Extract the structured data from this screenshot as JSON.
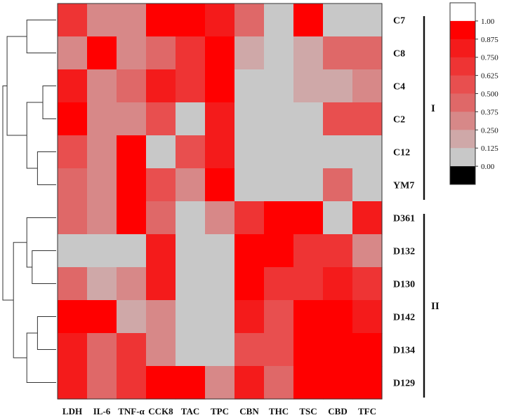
{
  "chart_data": {
    "type": "heatmap",
    "title": "",
    "xlabel": "",
    "ylabel": "",
    "columns": [
      "LDH",
      "IL-6",
      "TNF-α",
      "CCK8",
      "TAC",
      "TPC",
      "CBN",
      "THC",
      "TSC",
      "CBD",
      "TFC"
    ],
    "rows": [
      "C7",
      "C8",
      "C4",
      "C2",
      "C12",
      "YM7",
      "D361",
      "D132",
      "D130",
      "D142",
      "D134",
      "D129"
    ],
    "values": [
      [
        0.7,
        0.3,
        0.3,
        1.0,
        1.0,
        0.85,
        0.4,
        0.1,
        1.0,
        0.1,
        0.1
      ],
      [
        0.35,
        1.0,
        0.3,
        0.5,
        0.75,
        1.0,
        0.25,
        0.1,
        0.25,
        0.4,
        0.4
      ],
      [
        0.85,
        0.35,
        0.5,
        0.8,
        0.65,
        1.0,
        0.1,
        0.1,
        0.25,
        0.25,
        0.35
      ],
      [
        1.0,
        0.35,
        0.35,
        0.6,
        0.1,
        0.8,
        0.1,
        0.1,
        0.1,
        0.55,
        0.55
      ],
      [
        0.6,
        0.35,
        0.9,
        0.1,
        0.6,
        0.8,
        0.1,
        0.1,
        0.1,
        0.1,
        0.1
      ],
      [
        0.5,
        0.35,
        1.0,
        0.6,
        0.3,
        1.0,
        0.1,
        0.1,
        0.1,
        0.5,
        0.1
      ],
      [
        0.5,
        0.35,
        1.0,
        0.45,
        0.1,
        0.3,
        0.65,
        1.0,
        1.0,
        0.1,
        0.8
      ],
      [
        0.1,
        0.1,
        0.1,
        0.8,
        0.1,
        0.1,
        1.0,
        1.0,
        0.65,
        0.65,
        0.3
      ],
      [
        0.5,
        0.25,
        0.35,
        0.8,
        0.1,
        0.1,
        0.9,
        0.75,
        0.75,
        0.85,
        0.65
      ],
      [
        1.0,
        1.0,
        0.25,
        0.35,
        0.1,
        0.1,
        0.8,
        0.6,
        1.0,
        1.0,
        0.85
      ],
      [
        0.85,
        0.5,
        0.65,
        0.35,
        0.1,
        0.1,
        0.6,
        0.6,
        0.9,
        1.0,
        1.0
      ],
      [
        0.85,
        0.5,
        0.65,
        1.0,
        1.0,
        0.3,
        0.8,
        0.4,
        1.0,
        0.9,
        1.0
      ]
    ],
    "colorbar": {
      "ticks": [
        "1.00",
        "0.875",
        "0.750",
        "0.625",
        "0.500",
        "0.375",
        "0.250",
        "0.125",
        "0.00"
      ],
      "bands": [
        "#ffffff",
        "#ff0000",
        "#f41b1b",
        "#ee3434",
        "#e84f4f",
        "#df6868",
        "#d78888",
        "#cfa8a8",
        "#c8c8c8",
        "#000000"
      ]
    },
    "groups": [
      {
        "label": "I",
        "rows": [
          "C7",
          "C8",
          "C4",
          "C2",
          "C12",
          "YM7"
        ]
      },
      {
        "label": "II",
        "rows": [
          "D361",
          "D132",
          "D130",
          "D142",
          "D134",
          "D129"
        ]
      }
    ],
    "dendrogram": {
      "linkage": [
        {
          "a": "C7",
          "b": "C8",
          "height": 0.55
        },
        {
          "a": "C4",
          "b": "C2",
          "height": 0.25
        },
        {
          "a": "C12",
          "b": "YM7",
          "height": 0.35
        },
        {
          "a": "C4+C2",
          "b": "C12+YM7",
          "height": 0.55
        },
        {
          "a": "C7+C8",
          "b": "C4+C2+C12+YM7",
          "height": 0.92
        },
        {
          "a": "D142",
          "b": "D134",
          "height": 0.35
        },
        {
          "a": "D142+D134",
          "b": "D129",
          "height": 0.55
        },
        {
          "a": "D132",
          "b": "D130",
          "height": 0.45
        },
        {
          "a": "D361",
          "b": "D132+D130",
          "height": 0.55
        },
        {
          "a": "D361+D132+D130",
          "b": "D142+D134+D129",
          "height": 0.8
        },
        {
          "a": "I",
          "b": "II",
          "height": 1.0
        }
      ]
    }
  }
}
